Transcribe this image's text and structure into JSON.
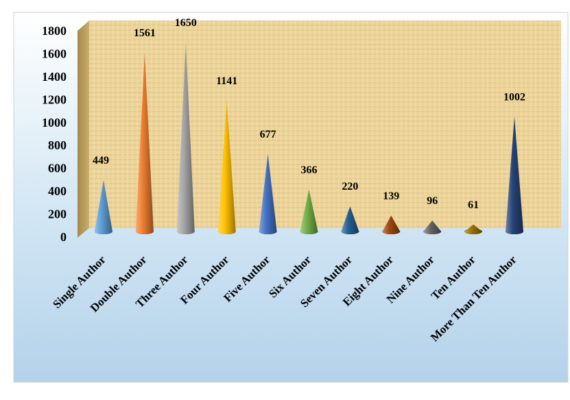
{
  "chart_data": {
    "type": "bar",
    "bar_shape": "cone",
    "categories": [
      "Single Author",
      "Double Author",
      "Three Author",
      "Four Author",
      "Five Author",
      "Six Author",
      "Seven Author",
      "Eight Author",
      "Nine Author",
      "Ten Author",
      "More Than Ten Author"
    ],
    "values": [
      449,
      1561,
      1650,
      1141,
      677,
      366,
      220,
      139,
      96,
      61,
      1002
    ],
    "value_labels": [
      "449",
      "1561",
      "1650",
      "1141",
      "677",
      "366",
      "220",
      "139",
      "96",
      "61",
      "1002"
    ],
    "y_ticks": [
      "0",
      "200",
      "400",
      "600",
      "800",
      "1000",
      "1200",
      "1400",
      "1600",
      "1800"
    ],
    "ylim": [
      0,
      1800
    ],
    "grid": false,
    "legend": "none",
    "title": "",
    "xlabel": "",
    "ylabel": "",
    "colors": {
      "bars": [
        "#5b9bd5",
        "#ed7d31",
        "#a5a5a5",
        "#ffc000",
        "#4472c4",
        "#70ad47",
        "#255e91",
        "#9e480e",
        "#636363",
        "#997300",
        "#264478"
      ],
      "wall": "#ecd49a",
      "wall_side": "#b89d58",
      "background_top": "#d2e6f4",
      "background_bottom": "#b4d2ea"
    }
  }
}
